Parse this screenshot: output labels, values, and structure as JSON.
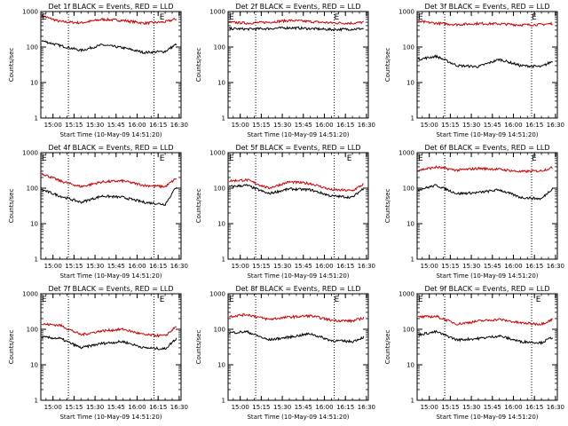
{
  "chart_data": [
    {
      "type": "line",
      "title": "Det 1f BLACK = Events, RED = LLD",
      "xlabel": "Start Time (10-May-09 14:51:20)",
      "ylabel": "Counts/sec",
      "x_ticks": [
        "15:00",
        "15:15",
        "15:30",
        "15:45",
        "16:00",
        "16:15",
        "16:30"
      ],
      "xlim": [
        "14:51:20",
        "16:31:20"
      ],
      "ylim": [
        1,
        1000
      ],
      "y_scale": "log",
      "y_ticks": [
        "1",
        "10",
        "100",
        "1000"
      ],
      "markers": [
        {
          "label": "E",
          "time": "14:52"
        },
        {
          "label": "E",
          "time": "16:16"
        }
      ],
      "dotted_lines": [
        "15:11",
        "16:12"
      ],
      "series": [
        {
          "color": "#cc0000",
          "x": [
            "14:52",
            "15:05",
            "15:20",
            "15:35",
            "15:50",
            "16:05",
            "16:20",
            "16:28"
          ],
          "y": [
            760,
            520,
            480,
            600,
            560,
            470,
            510,
            620
          ]
        },
        {
          "color": "#000000",
          "x": [
            "14:52",
            "15:05",
            "15:20",
            "15:35",
            "15:50",
            "16:05",
            "16:20",
            "16:28"
          ],
          "y": [
            150,
            110,
            80,
            115,
            95,
            70,
            75,
            120
          ]
        }
      ]
    },
    {
      "type": "line",
      "title": "Det 2f BLACK = Events, RED = LLD",
      "xlabel": "Start Time (10-May-09 14:51:20)",
      "ylabel": "Counts/sec",
      "x_ticks": [
        "15:00",
        "15:15",
        "15:30",
        "15:45",
        "16:00",
        "16:15",
        "16:30"
      ],
      "xlim": [
        "14:51:20",
        "16:31:20"
      ],
      "ylim": [
        1,
        1000
      ],
      "y_scale": "log",
      "y_ticks": [
        "1",
        "10",
        "100",
        "1000"
      ],
      "markers": [
        {
          "label": "E",
          "time": "14:52"
        },
        {
          "label": "E",
          "time": "16:07"
        }
      ],
      "dotted_lines": [
        "15:11",
        "16:07"
      ],
      "series": [
        {
          "color": "#cc0000",
          "x": [
            "14:52",
            "15:05",
            "15:20",
            "15:35",
            "15:50",
            "16:05",
            "16:20",
            "16:28"
          ],
          "y": [
            500,
            470,
            500,
            560,
            520,
            480,
            470,
            500
          ]
        },
        {
          "color": "#000000",
          "x": [
            "14:52",
            "15:05",
            "15:20",
            "15:35",
            "15:50",
            "16:05",
            "16:20",
            "16:28"
          ],
          "y": [
            330,
            320,
            330,
            350,
            330,
            310,
            320,
            330
          ]
        }
      ]
    },
    {
      "type": "line",
      "title": "Det 3f BLACK = Events, RED = LLD",
      "xlabel": "Start Time (10-May-09 14:51:20)",
      "ylabel": "Counts/sec",
      "x_ticks": [
        "15:00",
        "15:15",
        "15:30",
        "15:45",
        "16:00",
        "16:15",
        "16:30"
      ],
      "xlim": [
        "14:51:20",
        "16:31:20"
      ],
      "ylim": [
        1,
        1000
      ],
      "y_scale": "log",
      "y_ticks": [
        "1",
        "10",
        "100",
        "1000"
      ],
      "markers": [
        {
          "label": "E",
          "time": "14:52"
        },
        {
          "label": "E",
          "time": "16:13"
        }
      ],
      "dotted_lines": [
        "15:11",
        "16:13"
      ],
      "series": [
        {
          "color": "#cc0000",
          "x": [
            "14:52",
            "15:05",
            "15:20",
            "15:35",
            "15:50",
            "16:05",
            "16:20",
            "16:28"
          ],
          "y": [
            520,
            470,
            430,
            460,
            450,
            420,
            430,
            460
          ]
        },
        {
          "color": "#000000",
          "x": [
            "14:52",
            "15:05",
            "15:20",
            "15:35",
            "15:50",
            "16:05",
            "16:20",
            "16:28"
          ],
          "y": [
            45,
            55,
            30,
            28,
            45,
            30,
            28,
            40
          ]
        }
      ]
    },
    {
      "type": "line",
      "title": "Det 4f BLACK = Events, RED = LLD",
      "xlabel": "Start Time (10-May-09 14:51:20)",
      "ylabel": "Counts/sec",
      "x_ticks": [
        "15:00",
        "15:15",
        "15:30",
        "15:45",
        "16:00",
        "16:15",
        "16:30"
      ],
      "xlim": [
        "14:51:20",
        "16:31:20"
      ],
      "ylim": [
        1,
        1000
      ],
      "y_scale": "log",
      "y_ticks": [
        "1",
        "10",
        "100",
        "1000"
      ],
      "markers": [
        {
          "label": "E",
          "time": "14:52"
        },
        {
          "label": "E",
          "time": "16:16"
        }
      ],
      "dotted_lines": [
        "15:11",
        "16:12"
      ],
      "series": [
        {
          "color": "#cc0000",
          "x": [
            "14:52",
            "15:05",
            "15:20",
            "15:35",
            "15:50",
            "16:05",
            "16:20",
            "16:28"
          ],
          "y": [
            260,
            160,
            110,
            150,
            160,
            120,
            110,
            190
          ]
        },
        {
          "color": "#000000",
          "x": [
            "14:52",
            "15:05",
            "15:20",
            "15:35",
            "15:50",
            "16:05",
            "16:20",
            "16:28"
          ],
          "y": [
            90,
            60,
            40,
            60,
            55,
            40,
            35,
            110
          ]
        }
      ]
    },
    {
      "type": "line",
      "title": "Det 5f BLACK = Events, RED = LLD",
      "xlabel": "Start Time (10-May-09 14:51:20)",
      "ylabel": "Counts/sec",
      "x_ticks": [
        "15:00",
        "15:15",
        "15:30",
        "15:45",
        "16:00",
        "16:15",
        "16:30"
      ],
      "xlim": [
        "14:51:20",
        "16:31:20"
      ],
      "ylim": [
        1,
        1000
      ],
      "y_scale": "log",
      "y_ticks": [
        "1",
        "10",
        "100",
        "1000"
      ],
      "markers": [
        {
          "label": "E",
          "time": "14:52"
        },
        {
          "label": "E",
          "time": "16:16"
        }
      ],
      "dotted_lines": [
        "15:11",
        "16:07"
      ],
      "series": [
        {
          "color": "#cc0000",
          "x": [
            "14:52",
            "15:05",
            "15:20",
            "15:35",
            "15:50",
            "16:05",
            "16:20",
            "16:28"
          ],
          "y": [
            160,
            170,
            100,
            150,
            135,
            90,
            85,
            130
          ]
        },
        {
          "color": "#000000",
          "x": [
            "14:52",
            "15:05",
            "15:20",
            "15:35",
            "15:50",
            "16:05",
            "16:20",
            "16:28"
          ],
          "y": [
            110,
            120,
            70,
            95,
            90,
            60,
            55,
            100
          ]
        }
      ]
    },
    {
      "type": "line",
      "title": "Det 6f BLACK = Events, RED = LLD",
      "xlabel": "Start Time (10-May-09 14:51:20)",
      "ylabel": "Counts/sec",
      "x_ticks": [
        "15:00",
        "15:15",
        "15:30",
        "15:45",
        "16:00",
        "16:15",
        "16:30"
      ],
      "xlim": [
        "14:51:20",
        "16:31:20"
      ],
      "ylim": [
        1,
        1000
      ],
      "y_scale": "log",
      "y_ticks": [
        "1",
        "10",
        "100",
        "1000"
      ],
      "markers": [
        {
          "label": "E",
          "time": "14:52"
        },
        {
          "label": "E",
          "time": "16:13"
        }
      ],
      "dotted_lines": [
        "15:11",
        "16:13"
      ],
      "series": [
        {
          "color": "#cc0000",
          "x": [
            "14:52",
            "15:05",
            "15:20",
            "15:35",
            "15:50",
            "16:05",
            "16:20",
            "16:28"
          ],
          "y": [
            320,
            390,
            320,
            360,
            340,
            290,
            310,
            380
          ]
        },
        {
          "color": "#000000",
          "x": [
            "14:52",
            "15:05",
            "15:20",
            "15:35",
            "15:50",
            "16:05",
            "16:20",
            "16:28"
          ],
          "y": [
            90,
            120,
            70,
            75,
            90,
            55,
            50,
            100
          ]
        }
      ]
    },
    {
      "type": "line",
      "title": "Det 7f BLACK = Events, RED = LLD",
      "xlabel": "Start Time (10-May-09 14:51:20)",
      "ylabel": "Counts/sec",
      "x_ticks": [
        "15:00",
        "15:15",
        "15:30",
        "15:45",
        "16:00",
        "16:15",
        "16:30"
      ],
      "xlim": [
        "14:51:20",
        "16:31:20"
      ],
      "ylim": [
        1,
        1000
      ],
      "y_scale": "log",
      "y_ticks": [
        "1",
        "10",
        "100",
        "1000"
      ],
      "markers": [
        {
          "label": "E",
          "time": "14:52"
        },
        {
          "label": "E",
          "time": "16:16"
        }
      ],
      "dotted_lines": [
        "15:11",
        "16:12"
      ],
      "series": [
        {
          "color": "#cc0000",
          "x": [
            "14:52",
            "15:05",
            "15:20",
            "15:35",
            "15:50",
            "16:05",
            "16:20",
            "16:28"
          ],
          "y": [
            140,
            130,
            70,
            90,
            100,
            70,
            65,
            120
          ]
        },
        {
          "color": "#000000",
          "x": [
            "14:52",
            "15:05",
            "15:20",
            "15:35",
            "15:50",
            "16:05",
            "16:20",
            "16:28"
          ],
          "y": [
            60,
            55,
            30,
            40,
            45,
            30,
            28,
            55
          ]
        }
      ]
    },
    {
      "type": "line",
      "title": "Det 8f BLACK = Events, RED = LLD",
      "xlabel": "Start Time (10-May-09 14:51:20)",
      "ylabel": "Counts/sec",
      "x_ticks": [
        "15:00",
        "15:15",
        "15:30",
        "15:45",
        "16:00",
        "16:15",
        "16:30"
      ],
      "xlim": [
        "14:51:20",
        "16:31:20"
      ],
      "ylim": [
        1,
        1000
      ],
      "y_scale": "log",
      "y_ticks": [
        "1",
        "10",
        "100",
        "1000"
      ],
      "markers": [
        {
          "label": "E",
          "time": "14:52"
        },
        {
          "label": "E",
          "time": "16:07"
        }
      ],
      "dotted_lines": [
        "15:11",
        "16:07"
      ],
      "series": [
        {
          "color": "#cc0000",
          "x": [
            "14:52",
            "15:05",
            "15:20",
            "15:35",
            "15:50",
            "16:05",
            "16:20",
            "16:28"
          ],
          "y": [
            230,
            260,
            190,
            220,
            240,
            180,
            170,
            210
          ]
        },
        {
          "color": "#000000",
          "x": [
            "14:52",
            "15:05",
            "15:20",
            "15:35",
            "15:50",
            "16:05",
            "16:20",
            "16:28"
          ],
          "y": [
            80,
            85,
            50,
            60,
            75,
            48,
            45,
            60
          ]
        }
      ]
    },
    {
      "type": "line",
      "title": "Det 9f BLACK = Events, RED = LLD",
      "xlabel": "Start Time (10-May-09 14:51:20)",
      "ylabel": "Counts/sec",
      "x_ticks": [
        "15:00",
        "15:15",
        "15:30",
        "15:45",
        "16:00",
        "16:15",
        "16:30"
      ],
      "xlim": [
        "14:51:20",
        "16:31:20"
      ],
      "ylim": [
        1,
        1000
      ],
      "y_scale": "log",
      "y_ticks": [
        "1",
        "10",
        "100",
        "1000"
      ],
      "markers": [
        {
          "label": "E",
          "time": "14:52"
        },
        {
          "label": "E",
          "time": "16:16"
        }
      ],
      "dotted_lines": [
        "15:11",
        "16:13"
      ],
      "series": [
        {
          "color": "#cc0000",
          "x": [
            "14:52",
            "15:05",
            "15:20",
            "15:35",
            "15:50",
            "16:05",
            "16:20",
            "16:28"
          ],
          "y": [
            220,
            230,
            140,
            170,
            190,
            150,
            140,
            190
          ]
        },
        {
          "color": "#000000",
          "x": [
            "14:52",
            "15:05",
            "15:20",
            "15:35",
            "15:50",
            "16:05",
            "16:20",
            "16:28"
          ],
          "y": [
            70,
            85,
            50,
            55,
            65,
            45,
            42,
            60
          ]
        }
      ]
    }
  ]
}
